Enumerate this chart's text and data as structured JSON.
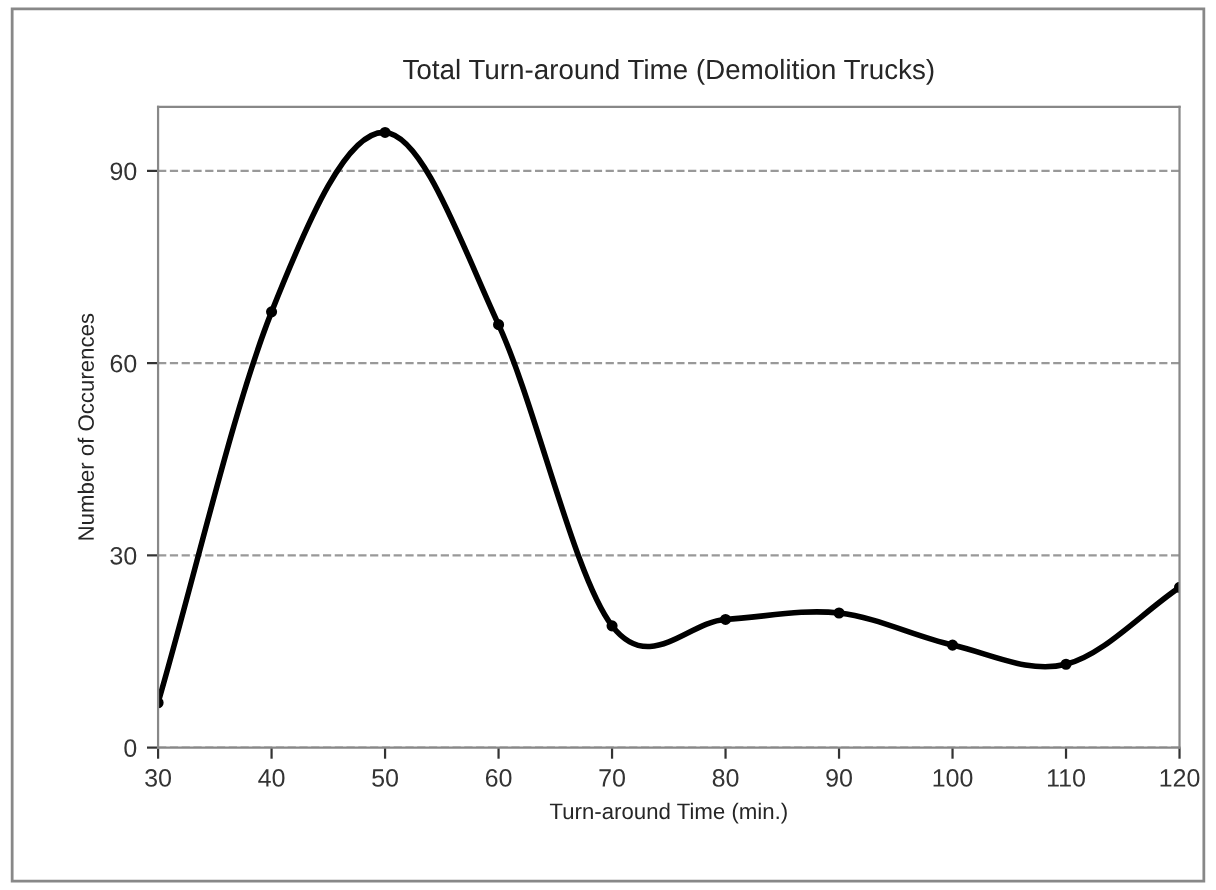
{
  "chart_data": {
    "type": "line",
    "title": "Total Turn-around Time (Demolition Trucks)",
    "xlabel": "Turn-around Time (min.)",
    "ylabel": "Number of Occurences",
    "x": [
      30,
      40,
      50,
      60,
      70,
      80,
      90,
      100,
      110,
      120
    ],
    "series": [
      {
        "color": "#000000",
        "values": [
          7,
          68,
          96,
          66,
          19,
          20,
          21,
          16,
          13,
          25
        ]
      }
    ],
    "xlim": [
      30,
      120
    ],
    "xticks": [
      30,
      40,
      50,
      60,
      70,
      80,
      90,
      100,
      110,
      120
    ],
    "ylim": [
      0,
      100
    ],
    "yticks": [
      0,
      30,
      60,
      90
    ],
    "grid": "y",
    "marker": "circle",
    "line_style": "solid"
  }
}
